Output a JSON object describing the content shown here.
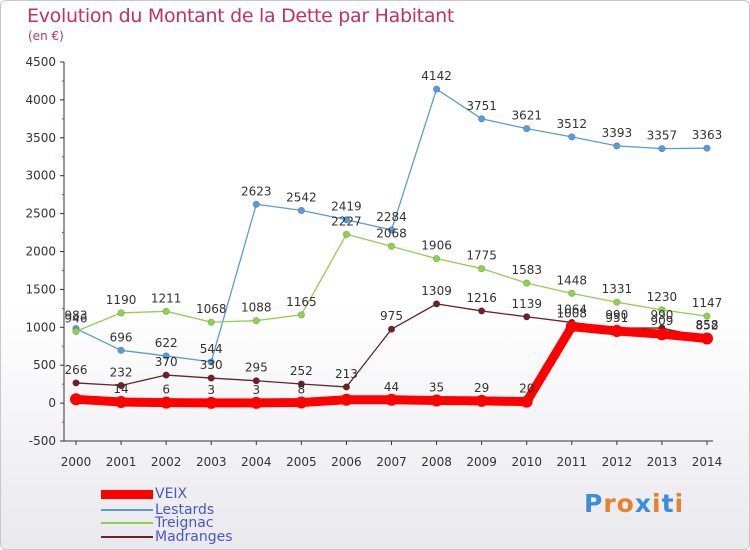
{
  "header": {
    "title": "Evolution du Montant de la Dette par Habitant",
    "unit": "(en €)"
  },
  "logo": {
    "text": "Proxiti",
    "letters": [
      "P",
      "r",
      "o",
      "x",
      "i",
      "t",
      "i"
    ],
    "colors": [
      "#3a8fd8",
      "#e8812b",
      "#e8812b",
      "#3a8fd8",
      "#e8812b",
      "#3a8fd8",
      "#e8812b"
    ]
  },
  "chart_data": {
    "type": "line",
    "title": "Evolution du Montant de la Dette par Habitant",
    "ylabel": "(en €)",
    "xlabel": "",
    "x": [
      "2000",
      "2001",
      "2002",
      "2003",
      "2004",
      "2005",
      "2006",
      "2007",
      "2008",
      "2009",
      "2010",
      "2011",
      "2012",
      "2013",
      "2014"
    ],
    "ylim": [
      -500,
      4500
    ],
    "yticks": [
      -500,
      0,
      500,
      1000,
      1500,
      2000,
      2500,
      3000,
      3500,
      4000,
      4500
    ],
    "grid": false,
    "legend_position": "bottom-left",
    "series": [
      {
        "name": "Lestards",
        "color": "#5b9bd5",
        "values": [
          983,
          696,
          622,
          544,
          2623,
          2542,
          2419,
          2284,
          4142,
          3751,
          3621,
          3512,
          3393,
          3357,
          3363
        ]
      },
      {
        "name": "Treignac",
        "color": "#8fd14f",
        "values": [
          946,
          1190,
          1211,
          1068,
          1088,
          1165,
          2227,
          2068,
          1906,
          1775,
          1583,
          1448,
          1331,
          1230,
          1147
        ]
      },
      {
        "name": "Madranges",
        "color": "#6b2226",
        "values": [
          266,
          232,
          370,
          330,
          295,
          252,
          213,
          975,
          1309,
          1216,
          1139,
          1064,
          990,
          990,
          858
        ]
      },
      {
        "name": "VEIX",
        "color": "#ff0000",
        "values": [
          50,
          14,
          6,
          3,
          3,
          8,
          44,
          44,
          35,
          29,
          20,
          1008,
          951,
          909,
          852
        ]
      }
    ],
    "data_labels": {
      "Lestards": [
        "983",
        "696",
        "622",
        "544",
        "2623",
        "2542",
        "2419",
        "2284",
        "4142",
        "3751",
        "3621",
        "3512",
        "3393",
        "3357",
        "3363"
      ],
      "Treignac": [
        "946",
        "1190",
        "1211",
        "1068",
        "1088",
        "1165",
        "2227",
        "2068",
        "1906",
        "1775",
        "1583",
        "1448",
        "1331",
        "1230",
        "1147"
      ],
      "Madranges": [
        "266",
        "232",
        "370",
        "330",
        "295",
        "252",
        "213",
        "975",
        "1309",
        "1216",
        "1139",
        "1064",
        "990",
        "990",
        "858"
      ],
      "VEIX": [
        "",
        "14",
        "6",
        "3",
        "3",
        "8",
        "",
        "44",
        "35",
        "29",
        "20",
        "1008",
        "951",
        "909",
        "852"
      ]
    }
  },
  "legend": [
    {
      "label": "VEIX",
      "color": "#ff0000",
      "thickness": 9
    },
    {
      "label": "Lestards",
      "color": "#5b9bd5",
      "thickness": 2
    },
    {
      "label": "Treignac",
      "color": "#8fd14f",
      "thickness": 2
    },
    {
      "label": "Madranges",
      "color": "#6b2226",
      "thickness": 2
    }
  ]
}
